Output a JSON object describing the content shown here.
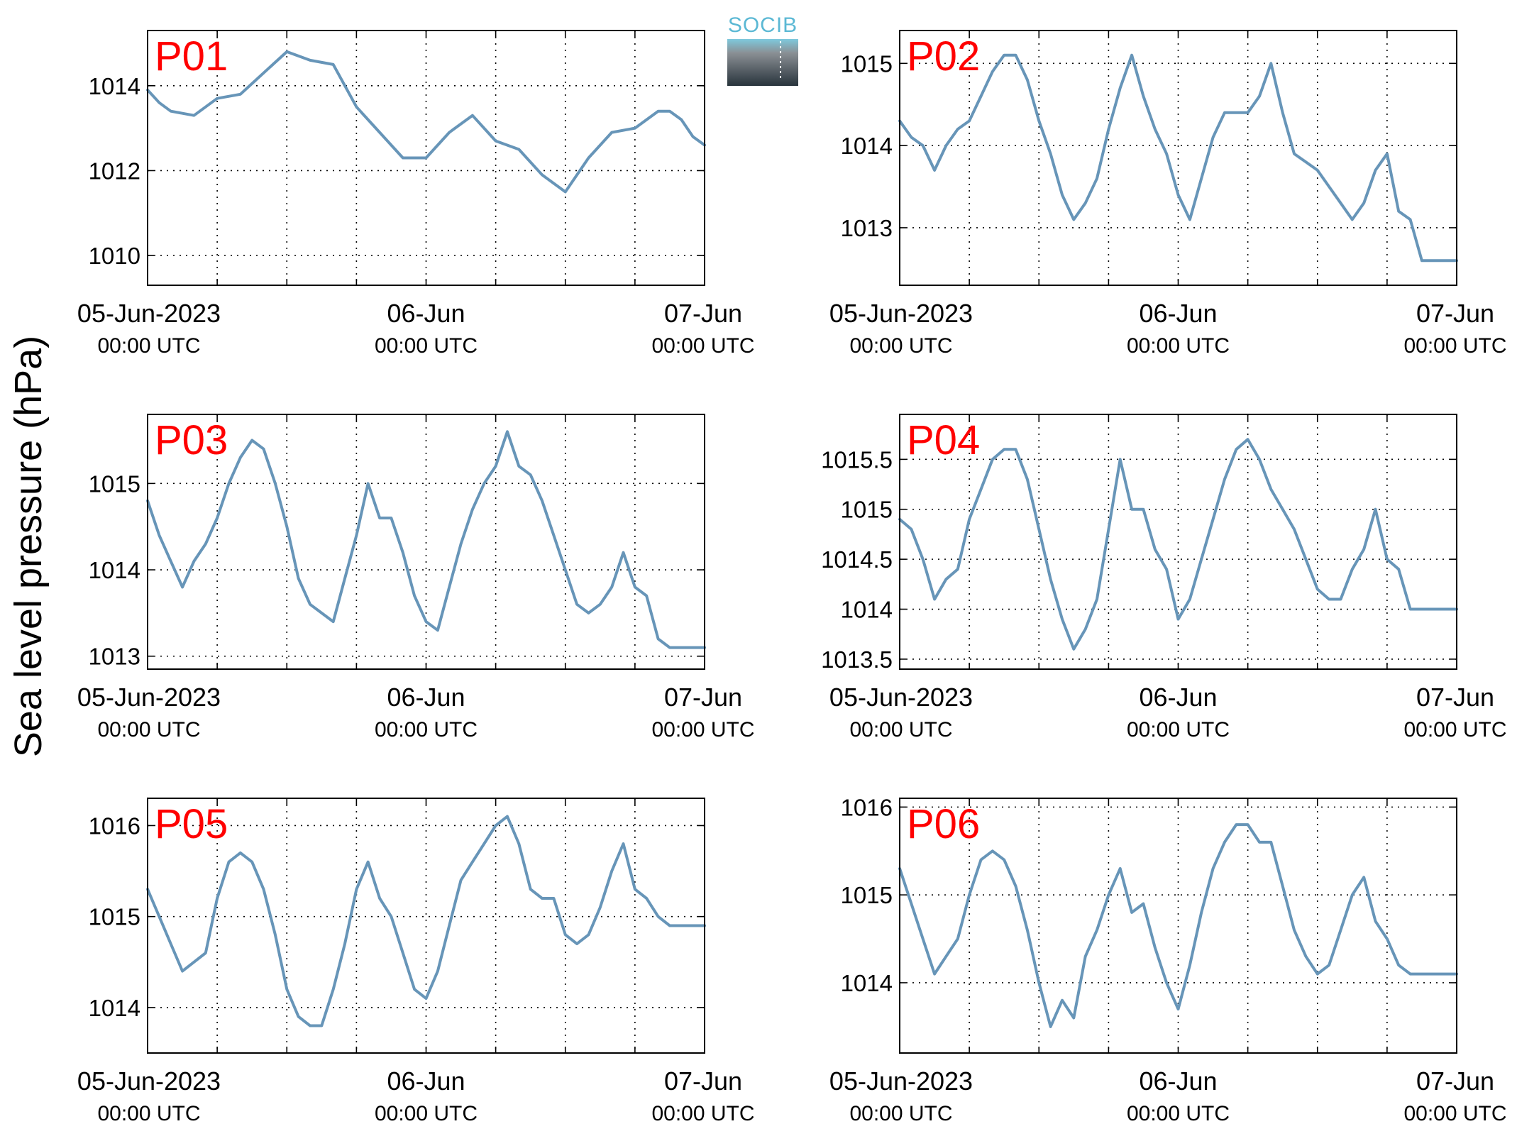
{
  "figure": {
    "ylabel": "Sea level pressure (hPa)",
    "logo_text": "SOCIB",
    "colors": {
      "line": "#6795b8",
      "panel_label": "#ff0000",
      "logo_accent": "#5bb8d4"
    },
    "date_ticks": [
      {
        "main": "05-Jun-2023",
        "sub": "00:00 UTC"
      },
      {
        "main": "06-Jun",
        "sub": "00:00 UTC"
      },
      {
        "main": "07-Jun",
        "sub": "00:00 UTC"
      }
    ]
  },
  "chart_data": [
    {
      "type": "line",
      "label": "P01",
      "x_range": [
        "2023-06-05T00:00",
        "2023-06-07T00:00"
      ],
      "ylim": [
        1009.3,
        1015.3
      ],
      "yticks": [
        1010,
        1012,
        1014
      ],
      "grid": true,
      "series": [
        {
          "x_hours": [
            0,
            1,
            2,
            4,
            6,
            8,
            10,
            12,
            14,
            16,
            18,
            20,
            22,
            24,
            26,
            28,
            30,
            32,
            34,
            36,
            38,
            40,
            42,
            44,
            45,
            46,
            47,
            48
          ],
          "values": [
            1013.9,
            1013.6,
            1013.4,
            1013.3,
            1013.7,
            1013.8,
            1014.3,
            1014.8,
            1014.6,
            1014.5,
            1013.5,
            1012.9,
            1012.3,
            1012.3,
            1012.9,
            1013.3,
            1012.7,
            1012.5,
            1011.9,
            1011.5,
            1012.3,
            1012.9,
            1013.0,
            1013.4,
            1013.4,
            1013.2,
            1012.8,
            1012.6
          ]
        }
      ]
    },
    {
      "type": "line",
      "label": "P02",
      "x_range": [
        "2023-06-05T00:00",
        "2023-06-07T00:00"
      ],
      "ylim": [
        1012.3,
        1015.4
      ],
      "yticks": [
        1013,
        1014,
        1015
      ],
      "grid": true,
      "series": [
        {
          "x_hours": [
            0,
            1,
            2,
            3,
            4,
            5,
            6,
            7,
            8,
            9,
            10,
            11,
            12,
            13,
            14,
            15,
            16,
            17,
            18,
            19,
            20,
            21,
            22,
            23,
            24,
            25,
            26,
            27,
            28,
            29,
            30,
            31,
            32,
            33,
            34,
            35,
            36,
            37,
            38,
            39,
            40,
            41,
            42,
            43,
            44,
            45,
            46,
            47,
            48
          ],
          "values": [
            1014.3,
            1014.1,
            1014.0,
            1013.7,
            1014.0,
            1014.2,
            1014.3,
            1014.6,
            1014.9,
            1015.1,
            1015.1,
            1014.8,
            1014.3,
            1013.9,
            1013.4,
            1013.1,
            1013.3,
            1013.6,
            1014.2,
            1014.7,
            1015.1,
            1014.6,
            1014.2,
            1013.9,
            1013.4,
            1013.1,
            1013.6,
            1014.1,
            1014.4,
            1014.4,
            1014.4,
            1014.6,
            1015.0,
            1014.4,
            1013.9,
            1013.8,
            1013.7,
            1013.5,
            1013.3,
            1013.1,
            1013.3,
            1013.7,
            1013.9,
            1013.2,
            1013.1,
            1012.6,
            1012.6,
            1012.6,
            1012.6
          ]
        }
      ]
    },
    {
      "type": "line",
      "label": "P03",
      "x_range": [
        "2023-06-05T00:00",
        "2023-06-07T00:00"
      ],
      "ylim": [
        1012.85,
        1015.8
      ],
      "yticks": [
        1013,
        1014,
        1015
      ],
      "grid": true,
      "series": [
        {
          "x_hours": [
            0,
            1,
            2,
            3,
            4,
            5,
            6,
            7,
            8,
            9,
            10,
            11,
            12,
            13,
            14,
            15,
            16,
            17,
            18,
            19,
            20,
            21,
            22,
            23,
            24,
            25,
            26,
            27,
            28,
            29,
            30,
            31,
            32,
            33,
            34,
            35,
            36,
            37,
            38,
            39,
            40,
            41,
            42,
            43,
            44,
            45,
            46,
            47,
            48
          ],
          "values": [
            1014.8,
            1014.4,
            1014.1,
            1013.8,
            1014.1,
            1014.3,
            1014.6,
            1015.0,
            1015.3,
            1015.5,
            1015.4,
            1015.0,
            1014.5,
            1013.9,
            1013.6,
            1013.5,
            1013.4,
            1013.9,
            1014.4,
            1015.0,
            1014.6,
            1014.6,
            1014.2,
            1013.7,
            1013.4,
            1013.3,
            1013.8,
            1014.3,
            1014.7,
            1015.0,
            1015.2,
            1015.6,
            1015.2,
            1015.1,
            1014.8,
            1014.4,
            1014.0,
            1013.6,
            1013.5,
            1013.6,
            1013.8,
            1014.2,
            1013.8,
            1013.7,
            1013.2,
            1013.1,
            1013.1,
            1013.1,
            1013.1
          ]
        }
      ]
    },
    {
      "type": "line",
      "label": "P04",
      "x_range": [
        "2023-06-05T00:00",
        "2023-06-07T00:00"
      ],
      "ylim": [
        1013.4,
        1015.95
      ],
      "yticks": [
        1013.5,
        1014,
        1014.5,
        1015,
        1015.5
      ],
      "grid": true,
      "series": [
        {
          "x_hours": [
            0,
            1,
            2,
            3,
            4,
            5,
            6,
            7,
            8,
            9,
            10,
            11,
            12,
            13,
            14,
            15,
            16,
            17,
            18,
            19,
            20,
            21,
            22,
            23,
            24,
            25,
            26,
            27,
            28,
            29,
            30,
            31,
            32,
            33,
            34,
            35,
            36,
            37,
            38,
            39,
            40,
            41,
            42,
            43,
            44,
            45,
            46,
            47,
            48
          ],
          "values": [
            1014.9,
            1014.8,
            1014.5,
            1014.1,
            1014.3,
            1014.4,
            1014.9,
            1015.2,
            1015.5,
            1015.6,
            1015.6,
            1015.3,
            1014.8,
            1014.3,
            1013.9,
            1013.6,
            1013.8,
            1014.1,
            1014.8,
            1015.5,
            1015.0,
            1015.0,
            1014.6,
            1014.4,
            1013.9,
            1014.1,
            1014.5,
            1014.9,
            1015.3,
            1015.6,
            1015.7,
            1015.5,
            1015.2,
            1015.0,
            1014.8,
            1014.5,
            1014.2,
            1014.1,
            1014.1,
            1014.4,
            1014.6,
            1015.0,
            1014.5,
            1014.4,
            1014.0,
            1014.0,
            1014.0,
            1014.0,
            1014.0
          ]
        }
      ]
    },
    {
      "type": "line",
      "label": "P05",
      "x_range": [
        "2023-06-05T00:00",
        "2023-06-07T00:00"
      ],
      "ylim": [
        1013.5,
        1016.3
      ],
      "yticks": [
        1014,
        1015,
        1016
      ],
      "grid": true,
      "series": [
        {
          "x_hours": [
            0,
            1,
            2,
            3,
            4,
            5,
            6,
            7,
            8,
            9,
            10,
            11,
            12,
            13,
            14,
            15,
            16,
            17,
            18,
            19,
            20,
            21,
            22,
            23,
            24,
            25,
            26,
            27,
            28,
            29,
            30,
            31,
            32,
            33,
            34,
            35,
            36,
            37,
            38,
            39,
            40,
            41,
            42,
            43,
            44,
            45,
            46,
            47,
            48
          ],
          "values": [
            1015.3,
            1015.0,
            1014.7,
            1014.4,
            1014.5,
            1014.6,
            1015.2,
            1015.6,
            1015.7,
            1015.6,
            1015.3,
            1014.8,
            1014.2,
            1013.9,
            1013.8,
            1013.8,
            1014.2,
            1014.7,
            1015.3,
            1015.6,
            1015.2,
            1015.0,
            1014.6,
            1014.2,
            1014.1,
            1014.4,
            1014.9,
            1015.4,
            1015.6,
            1015.8,
            1016.0,
            1016.1,
            1015.8,
            1015.3,
            1015.2,
            1015.2,
            1014.8,
            1014.7,
            1014.8,
            1015.1,
            1015.5,
            1015.8,
            1015.3,
            1015.2,
            1015.0,
            1014.9,
            1014.9,
            1014.9,
            1014.9
          ]
        }
      ]
    },
    {
      "type": "line",
      "label": "P06",
      "x_range": [
        "2023-06-05T00:00",
        "2023-06-07T00:00"
      ],
      "ylim": [
        1013.2,
        1016.1
      ],
      "yticks": [
        1014,
        1015,
        1016
      ],
      "grid": true,
      "series": [
        {
          "x_hours": [
            0,
            1,
            2,
            3,
            4,
            5,
            6,
            7,
            8,
            9,
            10,
            11,
            12,
            13,
            14,
            15,
            16,
            17,
            18,
            19,
            20,
            21,
            22,
            23,
            24,
            25,
            26,
            27,
            28,
            29,
            30,
            31,
            32,
            33,
            34,
            35,
            36,
            37,
            38,
            39,
            40,
            41,
            42,
            43,
            44,
            45,
            46,
            47,
            48
          ],
          "values": [
            1015.3,
            1014.9,
            1014.5,
            1014.1,
            1014.3,
            1014.5,
            1015.0,
            1015.4,
            1015.5,
            1015.4,
            1015.1,
            1014.6,
            1014.0,
            1013.5,
            1013.8,
            1013.6,
            1014.3,
            1014.6,
            1015.0,
            1015.3,
            1014.8,
            1014.9,
            1014.4,
            1014.0,
            1013.7,
            1014.2,
            1014.8,
            1015.3,
            1015.6,
            1015.8,
            1015.8,
            1015.6,
            1015.6,
            1015.1,
            1014.6,
            1014.3,
            1014.1,
            1014.2,
            1014.6,
            1015.0,
            1015.2,
            1014.7,
            1014.5,
            1014.2,
            1014.1,
            1014.1,
            1014.1,
            1014.1,
            1014.1
          ]
        }
      ]
    }
  ]
}
